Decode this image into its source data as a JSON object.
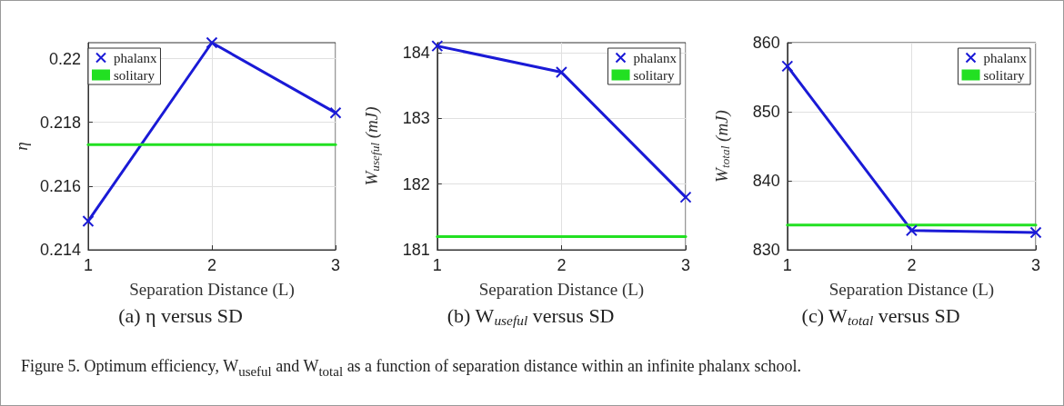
{
  "chart_data": [
    {
      "type": "line",
      "title": "(a) η versus SD",
      "ylabel": "η",
      "xlabel": "Separation Distance (L)",
      "xlim": [
        1,
        3
      ],
      "xticks": [
        1,
        2,
        3
      ],
      "ylim": [
        0.214,
        0.2205
      ],
      "yticks": [
        0.214,
        0.216,
        0.218,
        0.22
      ],
      "grid": true,
      "legend": "top left",
      "line_style": "solid",
      "series": [
        {
          "name": "phalanx",
          "color": "#1a1ad6",
          "marker": "cross",
          "x": [
            1,
            2,
            3
          ],
          "values": [
            0.2149,
            0.2205,
            0.2183
          ]
        },
        {
          "name": "solitary",
          "color": "#22e022",
          "marker": "none",
          "x": [
            1,
            3
          ],
          "values": [
            0.2173,
            0.2173
          ]
        }
      ]
    },
    {
      "type": "line",
      "title": "(b) W$_{useful}$ versus SD",
      "ylabel": "W$_{useful}$ (mJ)",
      "xlabel": "Separation Distance (L)",
      "xlim": [
        1,
        3
      ],
      "xticks": [
        1,
        2,
        3
      ],
      "ylim": [
        181,
        184.15
      ],
      "yticks": [
        181,
        182,
        183,
        184
      ],
      "grid": true,
      "legend": "top right",
      "line_style": "solid",
      "series": [
        {
          "name": "phalanx",
          "color": "#1a1ad6",
          "marker": "cross",
          "x": [
            1,
            2,
            3
          ],
          "values": [
            184.1,
            183.7,
            181.8
          ]
        },
        {
          "name": "solitary",
          "color": "#22e022",
          "marker": "none",
          "x": [
            1,
            3
          ],
          "values": [
            181.2,
            181.2
          ]
        }
      ]
    },
    {
      "type": "line",
      "title": "(c) W$_{total}$ versus SD",
      "ylabel": "W$_{total}$ (mJ)",
      "xlabel": "Separation Distance (L)",
      "xlim": [
        1,
        3
      ],
      "xticks": [
        1,
        2,
        3
      ],
      "ylim": [
        830,
        860
      ],
      "yticks": [
        830,
        840,
        850,
        860
      ],
      "grid": true,
      "legend": "top right",
      "line_style": "solid",
      "series": [
        {
          "name": "phalanx",
          "color": "#1a1ad6",
          "marker": "cross",
          "x": [
            1,
            2,
            3
          ],
          "values": [
            856.6,
            832.8,
            832.5
          ]
        },
        {
          "name": "solitary",
          "color": "#22e022",
          "marker": "none",
          "x": [
            1,
            3
          ],
          "values": [
            833.6,
            833.6
          ]
        }
      ],
      "annotations": [
        "Figure 5. Optimum efficiency, W$_{useful}$ and W$_{total}$ as a function of separation distance within an infinite phalanx school."
      ]
    }
  ]
}
